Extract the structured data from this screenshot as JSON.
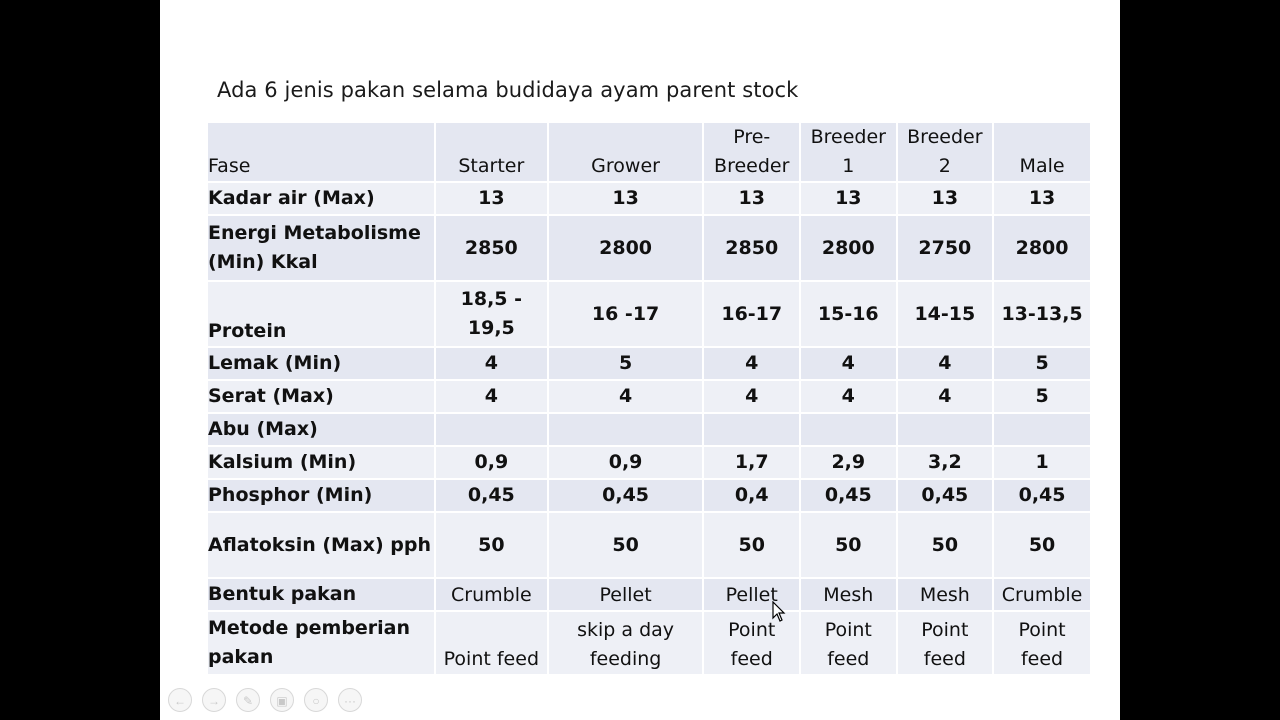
{
  "slide": {
    "title": "Ada 6 jenis pakan selama budidaya ayam parent stock"
  },
  "table": {
    "header": [
      "Fase",
      "Starter",
      "Grower",
      "Pre-\nBreeder",
      "Breeder 1",
      "Breeder 2",
      "Male"
    ],
    "rows": [
      {
        "label": "Kadar air (Max)",
        "values": [
          "13",
          "13",
          "13",
          "13",
          "13",
          "13"
        ]
      },
      {
        "label": "Energi Metabolisme (Min) Kkal",
        "values": [
          "2850",
          "2800",
          "2850",
          "2800",
          "2750",
          "2800"
        ]
      },
      {
        "label": "Protein",
        "values": [
          "18,5 - 19,5",
          "16 -17",
          "16-17",
          "15-16",
          "14-15",
          "13-13,5"
        ]
      },
      {
        "label": "Lemak (Min)",
        "values": [
          "4",
          "5",
          "4",
          "4",
          "4",
          "5"
        ]
      },
      {
        "label": "Serat (Max)",
        "values": [
          "4",
          "4",
          "4",
          "4",
          "4",
          "5"
        ]
      },
      {
        "label": "Abu (Max)",
        "values": [
          "",
          "",
          "",
          "",
          "",
          ""
        ]
      },
      {
        "label": "Kalsium (Min)",
        "values": [
          "0,9",
          "0,9",
          "1,7",
          "2,9",
          "3,2",
          "1"
        ]
      },
      {
        "label": "Phosphor (Min)",
        "values": [
          "0,45",
          "0,45",
          "0,4",
          "0,45",
          "0,45",
          "0,45"
        ]
      },
      {
        "label": "Aflatoksin (Max) pph",
        "values": [
          "50",
          "50",
          "50",
          "50",
          "50",
          "50"
        ]
      },
      {
        "label": "Bentuk pakan",
        "values": [
          "Crumble",
          "Pellet",
          "Pellet",
          "Mesh",
          "Mesh",
          "Crumble"
        ]
      },
      {
        "label": "Metode pemberian pakan",
        "values": [
          "Point feed",
          "skip a day feeding",
          "Point feed",
          "Point feed",
          "Point feed",
          "Point feed"
        ]
      }
    ]
  },
  "nav": {
    "icons": [
      "prev-icon",
      "next-icon",
      "pen-icon",
      "slides-icon",
      "zoom-icon",
      "more-icon"
    ],
    "glyphs": [
      "←",
      "→",
      "✎",
      "▣",
      "○",
      "···"
    ]
  }
}
